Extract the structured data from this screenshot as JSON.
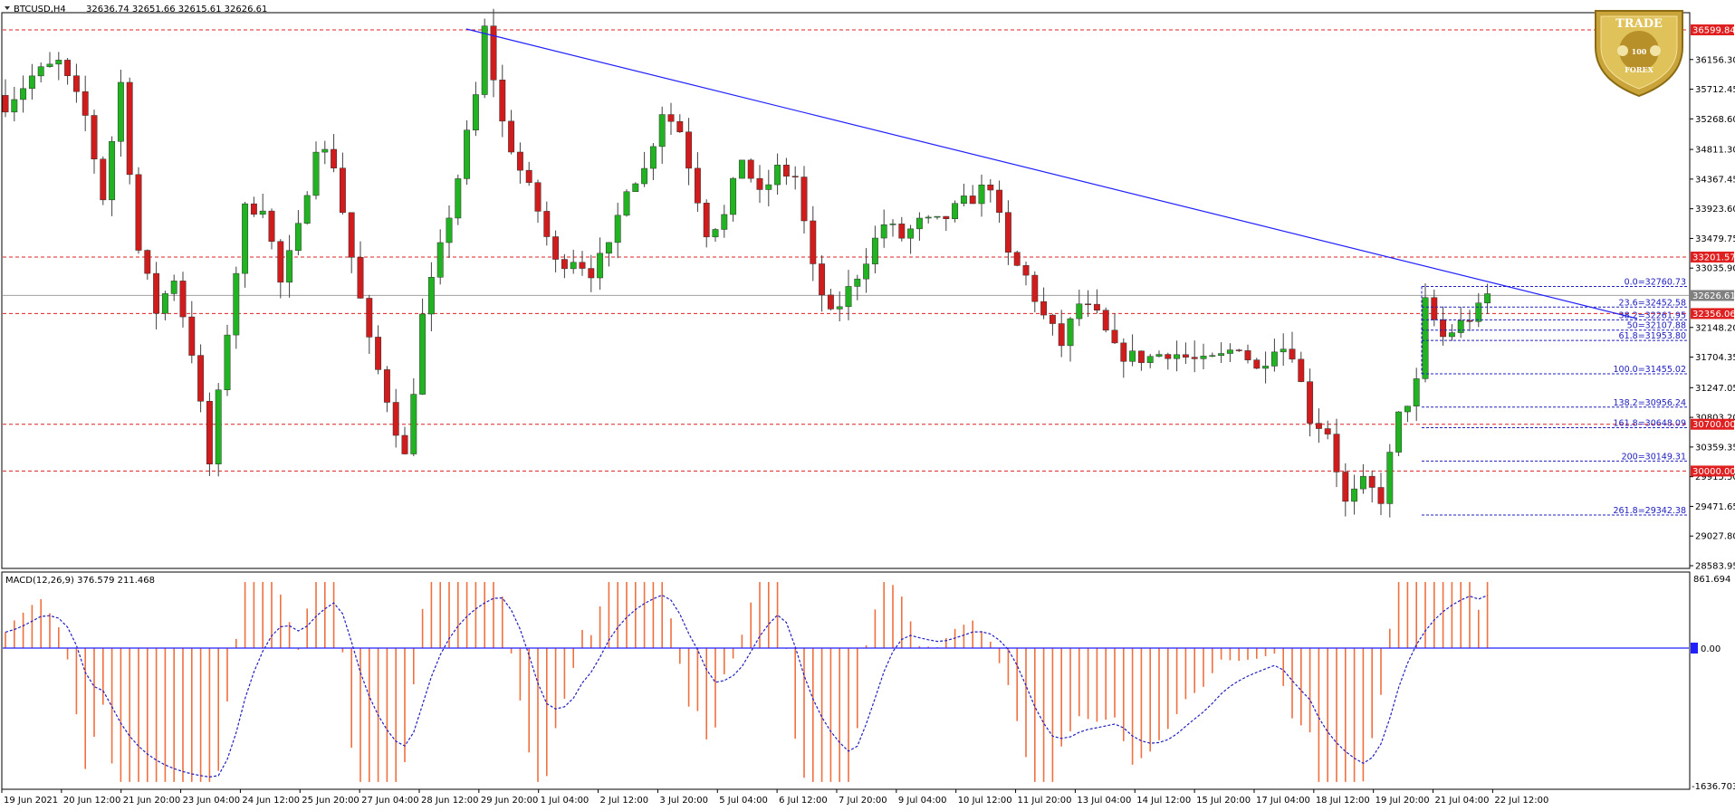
{
  "header": {
    "symbol": "BTCUSD,H4",
    "ohlc": "32636.74 32651.66 32615.61 32626.61"
  },
  "badge": {
    "top": "TRADE",
    "bottom": "FOREX",
    "mid": "100"
  },
  "price_axis": {
    "ticks": [
      "36156.30",
      "35712.45",
      "35268.60",
      "34811.30",
      "34367.45",
      "33923.60",
      "33479.75",
      "33035.90",
      "32148.20",
      "31704.35",
      "31247.05",
      "30803.20",
      "30359.35",
      "29915.50",
      "29471.65",
      "29027.80",
      "28583.95"
    ],
    "top_price": 36599.84,
    "bottom_price": 28583.95
  },
  "levels": [
    {
      "value": 36599.84,
      "label": "36599.84"
    },
    {
      "value": 33201.57,
      "label": "33201.57"
    },
    {
      "value": 32356.06,
      "label": "32356.06"
    },
    {
      "value": 30700.0,
      "label": "30700.00"
    },
    {
      "value": 30000.0,
      "label": "30000.00"
    }
  ],
  "current_price": {
    "value": 32626.61,
    "label": "32626.61"
  },
  "fibonacci": [
    {
      "value": 32760.73,
      "label": "0.0=32760.73"
    },
    {
      "value": 32452.58,
      "label": "23.6=32452.58"
    },
    {
      "value": 32261.95,
      "label": "38.2=32261.95"
    },
    {
      "value": 32107.88,
      "label": "50=32107.88"
    },
    {
      "value": 31953.8,
      "label": "61.8=31953.80"
    },
    {
      "value": 31455.02,
      "label": "100.0=31455.02"
    },
    {
      "value": 30956.24,
      "label": "138.2=30956.24"
    },
    {
      "value": 30648.09,
      "label": "161.8=30648.09"
    },
    {
      "value": 30149.31,
      "label": "200=30149.31"
    },
    {
      "value": 29342.38,
      "label": "261.8=29342.38"
    }
  ],
  "macd": {
    "label": "MACD(12,26,9) 376.579 211.468",
    "max": 861.694,
    "max_label": "861.694",
    "min": -1636.703,
    "min_label": "-1636.703",
    "zero_label": "0.00"
  },
  "time_axis": [
    "19 Jun 2021",
    "20 Jun 12:00",
    "21 Jun 20:00",
    "23 Jun 04:00",
    "24 Jun 12:00",
    "25 Jun 20:00",
    "27 Jun 04:00",
    "28 Jun 12:00",
    "29 Jun 20:00",
    "1 Jul 04:00",
    "2 Jul 12:00",
    "3 Jul 20:00",
    "5 Jul 04:00",
    "6 Jul 12:00",
    "7 Jul 20:00",
    "9 Jul 04:00",
    "10 Jul 12:00",
    "11 Jul 20:00",
    "13 Jul 04:00",
    "14 Jul 12:00",
    "15 Jul 20:00",
    "17 Jul 04:00",
    "18 Jul 12:00",
    "19 Jul 20:00",
    "21 Jul 04:00",
    "22 Jul 12:00"
  ],
  "chart_data": {
    "type": "candlestick",
    "symbol": "BTCUSD",
    "timeframe": "H4",
    "ylim": [
      28583.95,
      36599.84
    ],
    "close_path": [
      [
        0,
        35500
      ],
      [
        3,
        35900
      ],
      [
        6,
        36100
      ],
      [
        9,
        35300
      ],
      [
        11,
        34100
      ],
      [
        13,
        35800
      ],
      [
        15,
        33300
      ],
      [
        17,
        32400
      ],
      [
        19,
        32900
      ],
      [
        21,
        31800
      ],
      [
        23,
        30100
      ],
      [
        25,
        32100
      ],
      [
        27,
        33900
      ],
      [
        29,
        34000
      ],
      [
        31,
        32800
      ],
      [
        33,
        33600
      ],
      [
        35,
        34900
      ],
      [
        37,
        34600
      ],
      [
        39,
        33200
      ],
      [
        41,
        31900
      ],
      [
        43,
        31100
      ],
      [
        45,
        30200
      ],
      [
        47,
        32300
      ],
      [
        49,
        33300
      ],
      [
        51,
        34400
      ],
      [
        53,
        35600
      ],
      [
        54,
        36600
      ],
      [
        56,
        35200
      ],
      [
        58,
        34500
      ],
      [
        60,
        33900
      ],
      [
        62,
        33100
      ],
      [
        64,
        33200
      ],
      [
        66,
        33000
      ],
      [
        68,
        33300
      ],
      [
        70,
        34300
      ],
      [
        72,
        34500
      ],
      [
        74,
        35400
      ],
      [
        76,
        35100
      ],
      [
        77,
        34600
      ],
      [
        79,
        33600
      ],
      [
        81,
        33800
      ],
      [
        83,
        34700
      ],
      [
        85,
        34100
      ],
      [
        87,
        34500
      ],
      [
        89,
        34400
      ],
      [
        91,
        33000
      ],
      [
        93,
        32300
      ],
      [
        95,
        32700
      ],
      [
        97,
        33200
      ],
      [
        99,
        33700
      ],
      [
        101,
        33500
      ],
      [
        103,
        33700
      ],
      [
        105,
        33700
      ],
      [
        107,
        33900
      ],
      [
        109,
        34100
      ],
      [
        111,
        34300
      ],
      [
        113,
        33200
      ],
      [
        115,
        32900
      ],
      [
        117,
        32300
      ],
      [
        119,
        31900
      ],
      [
        121,
        32500
      ],
      [
        123,
        32300
      ],
      [
        125,
        31800
      ],
      [
        127,
        31700
      ],
      [
        129,
        31700
      ],
      [
        131,
        31800
      ],
      [
        133,
        31700
      ],
      [
        135,
        31600
      ],
      [
        137,
        31700
      ],
      [
        139,
        31900
      ],
      [
        141,
        31500
      ],
      [
        143,
        31900
      ],
      [
        145,
        31800
      ],
      [
        147,
        30800
      ],
      [
        149,
        30600
      ],
      [
        151,
        29500
      ],
      [
        153,
        29800
      ],
      [
        155,
        29600
      ],
      [
        157,
        30800
      ],
      [
        159,
        31300
      ],
      [
        160,
        32500
      ],
      [
        162,
        32000
      ],
      [
        164,
        32200
      ],
      [
        166,
        32400
      ],
      [
        167,
        32626.61
      ]
    ]
  }
}
